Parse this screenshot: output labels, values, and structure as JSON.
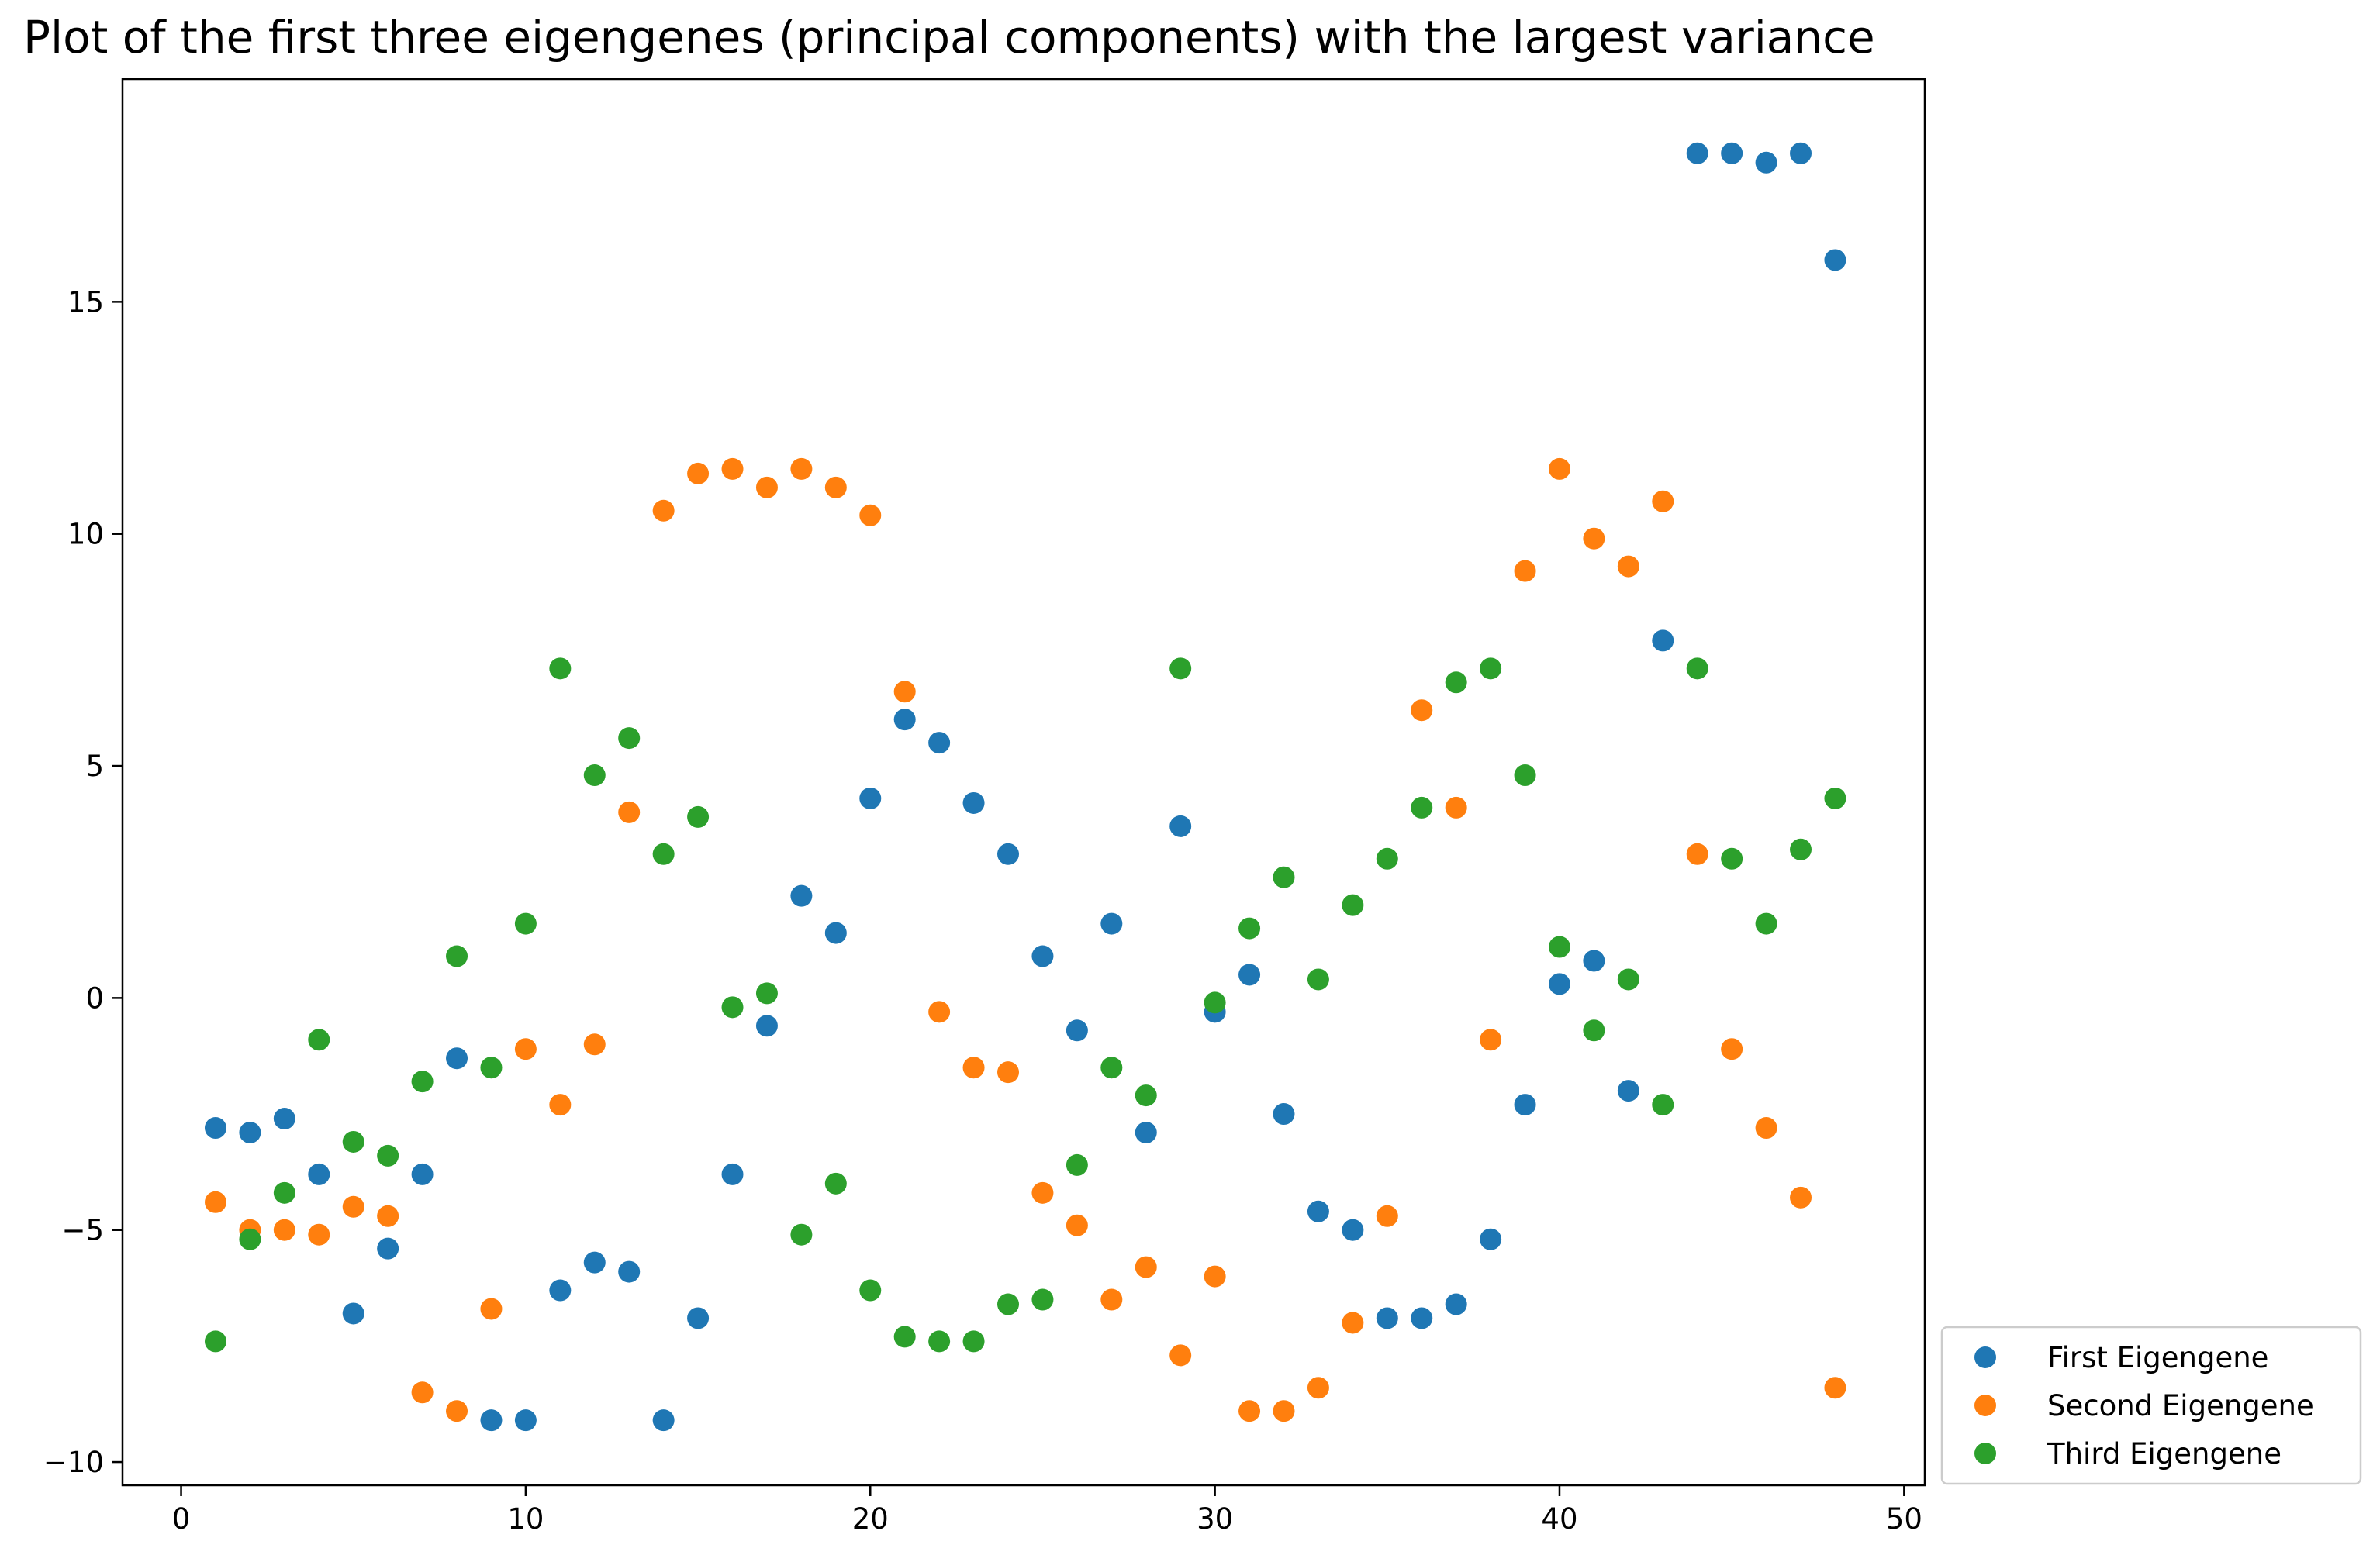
{
  "chart_data": {
    "type": "scatter",
    "title": "Plot of the first three eigengenes (principal components) with the largest variance",
    "xlabel": "",
    "ylabel": "",
    "xlim": [
      -1.7,
      50.6
    ],
    "ylim": [
      -10.5,
      19.8
    ],
    "xticks": [
      0,
      10,
      20,
      30,
      40,
      50
    ],
    "yticks": [
      -10,
      -5,
      0,
      5,
      10,
      15
    ],
    "xtick_labels": [
      "0",
      "10",
      "20",
      "30",
      "40",
      "50"
    ],
    "ytick_labels": [
      "−10",
      "−5",
      "0",
      "5",
      "10",
      "15"
    ],
    "grid": false,
    "legend_position": "outside-lower-right",
    "x": [
      1,
      2,
      3,
      4,
      5,
      6,
      7,
      8,
      9,
      10,
      11,
      12,
      13,
      14,
      15,
      16,
      17,
      18,
      19,
      20,
      21,
      22,
      23,
      24,
      25,
      26,
      27,
      28,
      29,
      30,
      31,
      32,
      33,
      34,
      35,
      36,
      37,
      38,
      39,
      40,
      41,
      42,
      43,
      44,
      45,
      46,
      47,
      48
    ],
    "series": [
      {
        "name": "First Eigengene",
        "color": "#1f77b4",
        "values": [
          -2.8,
          -2.9,
          -2.6,
          -3.8,
          -6.8,
          -5.4,
          -3.8,
          -1.3,
          -9.1,
          -9.1,
          -6.3,
          -5.7,
          -5.9,
          -9.1,
          -6.9,
          -3.8,
          -0.6,
          2.2,
          1.4,
          4.3,
          6.0,
          5.5,
          4.2,
          3.1,
          0.9,
          -0.7,
          1.6,
          -2.9,
          3.7,
          -0.3,
          0.5,
          -2.5,
          -4.6,
          -5.0,
          -6.9,
          -6.9,
          -6.6,
          -5.2,
          -2.3,
          0.3,
          0.8,
          -2.0,
          7.7,
          18.2,
          18.2,
          18.0,
          18.2,
          15.9
        ]
      },
      {
        "name": "Second Eigengene",
        "color": "#ff7f0e",
        "values": [
          -4.4,
          -5.0,
          -5.0,
          -5.1,
          -4.5,
          -4.7,
          -8.5,
          -8.9,
          -6.7,
          -1.1,
          -2.3,
          -1.0,
          4.0,
          10.5,
          11.3,
          11.4,
          11.0,
          11.4,
          11.0,
          10.4,
          6.6,
          -0.3,
          -1.5,
          -1.6,
          -4.2,
          -4.9,
          -6.5,
          -5.8,
          -7.7,
          -6.0,
          -8.9,
          -8.9,
          -8.4,
          -7.0,
          -4.7,
          6.2,
          4.1,
          -0.9,
          9.2,
          11.4,
          9.9,
          9.3,
          10.7,
          3.1,
          -1.1,
          -2.8,
          -4.3,
          -8.4
        ]
      },
      {
        "name": "Third Eigengene",
        "color": "#2ca02c",
        "values": [
          -7.4,
          -5.2,
          -4.2,
          -0.9,
          -3.1,
          -3.4,
          -1.8,
          0.9,
          -1.5,
          1.6,
          7.1,
          4.8,
          5.6,
          3.1,
          3.9,
          -0.2,
          0.1,
          -5.1,
          -4.0,
          -6.3,
          -7.3,
          -7.4,
          -7.4,
          -6.6,
          -6.5,
          -3.6,
          -1.5,
          -2.1,
          7.1,
          -0.1,
          1.5,
          2.6,
          0.4,
          2.0,
          3.0,
          4.1,
          6.8,
          7.1,
          4.8,
          1.1,
          -0.7,
          0.4,
          -2.3,
          7.1,
          3.0,
          1.6,
          3.2,
          4.3
        ]
      }
    ]
  }
}
